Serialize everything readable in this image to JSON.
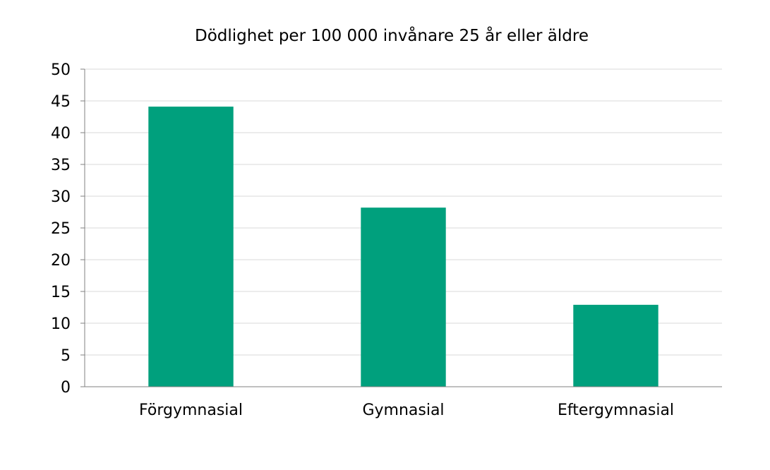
{
  "chart_data": {
    "type": "bar",
    "title": "Dödlighet per 100 000 invånare 25 år eller äldre",
    "xlabel": "",
    "ylabel": "",
    "categories": [
      "Förgymnasial",
      "Gymnasial",
      "Eftergymnasial"
    ],
    "values": [
      44.1,
      28.2,
      12.9
    ],
    "ylim": [
      0,
      50
    ],
    "yticks": [
      "0",
      "5",
      "10",
      "15",
      "20",
      "25",
      "30",
      "35",
      "40",
      "45",
      "50"
    ],
    "grid": true,
    "legend": "none",
    "bar_color": "#00a07d",
    "grid_color": "#d9d9d9",
    "axis_color": "#808080"
  }
}
